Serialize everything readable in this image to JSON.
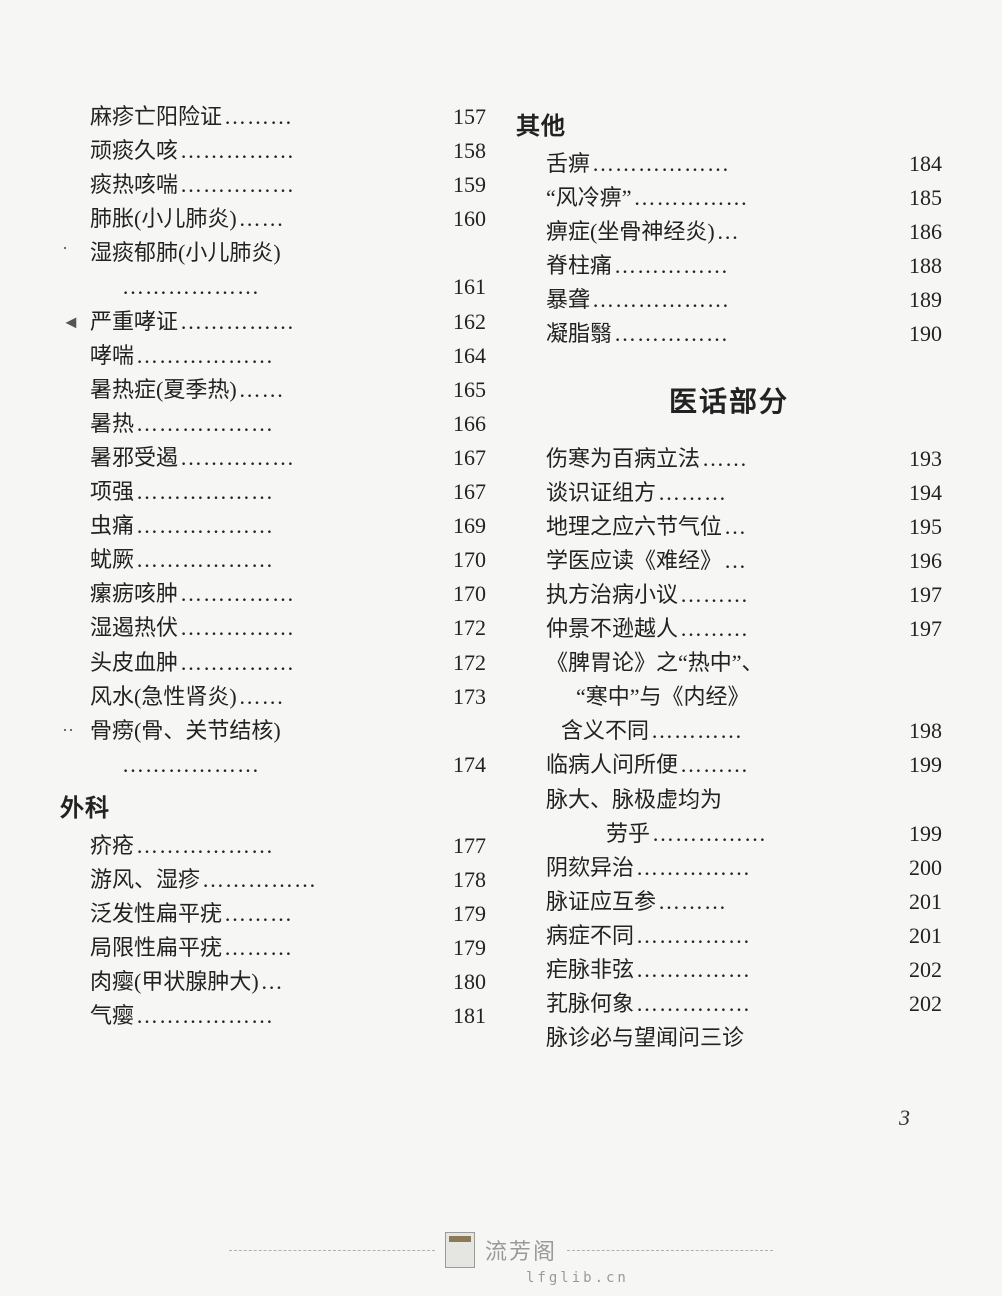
{
  "page_number": "3",
  "watermark": {
    "main": "流芳阁",
    "sub": "lfglib.cn"
  },
  "dots_wide": "………………",
  "dots_medium": "…………",
  "dots_narrow": "………",
  "dots_more": "……………",
  "dots_six": "……",
  "dots_three": "…",
  "left": {
    "block1": [
      {
        "label": "麻疹亡阳险证",
        "page": "157",
        "dots": "dots_narrow"
      },
      {
        "label": "顽痰久咳",
        "page": "158",
        "dots": "dots_more"
      },
      {
        "label": "痰热咳喘",
        "page": "159",
        "dots": "dots_more"
      },
      {
        "label": "肺胀(小儿肺炎)",
        "page": "160",
        "dots": "dots_six"
      }
    ],
    "block1_multi": {
      "first": "湿痰郁肺(小儿肺炎)",
      "second_dots": "dots_wide",
      "second_page": "161"
    },
    "block2": [
      {
        "label": "严重哮证",
        "page": "162",
        "dots": "dots_more"
      },
      {
        "label": "哮喘",
        "page": "164",
        "dots": "dots_wide"
      },
      {
        "label": "暑热症(夏季热)",
        "page": "165",
        "dots": "dots_six"
      },
      {
        "label": "暑热",
        "page": "166",
        "dots": "dots_wide"
      },
      {
        "label": "暑邪受遏",
        "page": "167",
        "dots": "dots_more"
      },
      {
        "label": "项强",
        "page": "167",
        "dots": "dots_wide"
      },
      {
        "label": "虫痛",
        "page": "169",
        "dots": "dots_wide"
      },
      {
        "label": "蚘厥",
        "page": "170",
        "dots": "dots_wide"
      },
      {
        "label": "瘰疬咳肿",
        "page": "170",
        "dots": "dots_more"
      },
      {
        "label": "湿遏热伏",
        "page": "172",
        "dots": "dots_more"
      },
      {
        "label": "头皮血肿",
        "page": "172",
        "dots": "dots_more"
      },
      {
        "label": "风水(急性肾炎)",
        "page": "173",
        "dots": "dots_six"
      }
    ],
    "block2_multi": {
      "first": "骨痨(骨、关节结核)",
      "second_dots": "dots_wide",
      "second_page": "174"
    },
    "heading2": "外科",
    "block3": [
      {
        "label": "疥疮",
        "page": "177",
        "dots": "dots_wide"
      },
      {
        "label": "游风、湿疹",
        "page": "178",
        "dots": "dots_more"
      },
      {
        "label": "泛发性扁平疣",
        "page": "179",
        "dots": "dots_narrow"
      },
      {
        "label": "局限性扁平疣",
        "page": "179",
        "dots": "dots_narrow"
      },
      {
        "label": "肉瘿(甲状腺肿大)",
        "page": "180",
        "dots": "dots_three"
      },
      {
        "label": "气瘿",
        "page": "181",
        "dots": "dots_wide"
      }
    ]
  },
  "right": {
    "heading1": "其他",
    "block1": [
      {
        "label": "舌痹",
        "page": "184",
        "dots": "dots_wide"
      },
      {
        "label": "“风冷痹”",
        "page": "185",
        "dots": "dots_more"
      },
      {
        "label": "痹症(坐骨神经炎)",
        "page": "186",
        "dots": "dots_three"
      },
      {
        "label": "脊柱痛",
        "page": "188",
        "dots": "dots_more"
      },
      {
        "label": "暴聋",
        "page": "189",
        "dots": "dots_wide"
      },
      {
        "label": "凝脂翳",
        "page": "190",
        "dots": "dots_more"
      }
    ],
    "title2": "医话部分",
    "block2": [
      {
        "label": "伤寒为百病立法",
        "page": "193",
        "dots": "dots_six"
      },
      {
        "label": "谈识证组方",
        "page": "194",
        "dots": "dots_narrow"
      },
      {
        "label": "地理之应六节气位",
        "page": "195",
        "dots": "dots_three"
      },
      {
        "label": "学医应读《难经》",
        "page": "196",
        "dots": "dots_three"
      },
      {
        "label": "执方治病小议",
        "page": "197",
        "dots": "dots_narrow"
      },
      {
        "label": "仲景不逊越人",
        "page": "197",
        "dots": "dots_narrow"
      }
    ],
    "block2_multi1": {
      "first": "《脾胃论》之“热中”、",
      "second": "“寒中”与《内经》",
      "third_label": "含义不同",
      "third_dots": "dots_medium",
      "third_page": "198"
    },
    "block3a": [
      {
        "label": "临病人问所便",
        "page": "199",
        "dots": "dots_narrow"
      }
    ],
    "block2_multi2": {
      "first": "脉大、脉极虚均为",
      "second_label": "劳乎",
      "second_dots": "dots_more",
      "second_page": "199"
    },
    "block3b": [
      {
        "label": "阴欬异治",
        "page": "200",
        "dots": "dots_more"
      },
      {
        "label": "脉证应互参",
        "page": "201",
        "dots": "dots_narrow"
      },
      {
        "label": "病症不同",
        "page": "201",
        "dots": "dots_more"
      },
      {
        "label": "疟脉非弦",
        "page": "202",
        "dots": "dots_more"
      },
      {
        "label": "芤脉何象",
        "page": "202",
        "dots": "dots_more"
      }
    ],
    "trailing": "脉诊必与望闻问三诊"
  }
}
